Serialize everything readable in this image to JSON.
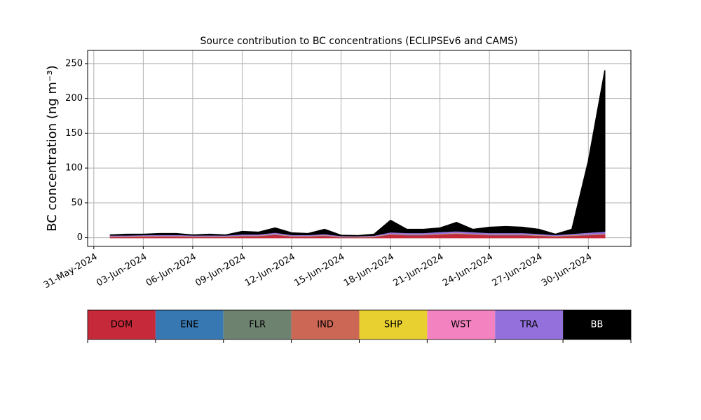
{
  "chart_data": {
    "type": "stacked_area",
    "title": "Source contribution to BC concentrations (ECLIPSEv6 and CAMS)",
    "y_label": "BC concentration (ng m⁻³)",
    "x": [
      "2024-06-01",
      "2024-06-02",
      "2024-06-03",
      "2024-06-04",
      "2024-06-05",
      "2024-06-06",
      "2024-06-07",
      "2024-06-08",
      "2024-06-09",
      "2024-06-10",
      "2024-06-11",
      "2024-06-12",
      "2024-06-13",
      "2024-06-14",
      "2024-06-15",
      "2024-06-16",
      "2024-06-17",
      "2024-06-18",
      "2024-06-19",
      "2024-06-20",
      "2024-06-21",
      "2024-06-22",
      "2024-06-23",
      "2024-06-24",
      "2024-06-25",
      "2024-06-26",
      "2024-06-27",
      "2024-06-28",
      "2024-06-29",
      "2024-06-30",
      "2024-07-01"
    ],
    "series": [
      {
        "name": "DOM",
        "color": "#c62a3a",
        "values": [
          1.5,
          1.5,
          1.8,
          2,
          2,
          1.5,
          1.5,
          1.5,
          2.5,
          2.5,
          4.5,
          2,
          2,
          3,
          1,
          0.8,
          1.2,
          5,
          4,
          4,
          5,
          6,
          5,
          4,
          4,
          4,
          3,
          2,
          3,
          4,
          5
        ]
      },
      {
        "name": "ENE",
        "color": "#3878b2",
        "values": [
          0.2,
          0.2,
          0.2,
          0.2,
          0.2,
          0.2,
          0.2,
          0.2,
          0.2,
          0.2,
          0.2,
          0.2,
          0.2,
          0.2,
          0.2,
          0.2,
          0.2,
          0.2,
          0.2,
          0.2,
          0.2,
          0.2,
          0.2,
          0.2,
          0.2,
          0.2,
          0.2,
          0.2,
          0.2,
          0.2,
          0.2
        ]
      },
      {
        "name": "FLR",
        "color": "#6e8270",
        "values": [
          0.1,
          0.1,
          0.1,
          0.1,
          0.1,
          0.1,
          0.1,
          0.1,
          0.1,
          0.1,
          0.1,
          0.1,
          0.1,
          0.1,
          0.1,
          0.1,
          0.1,
          0.1,
          0.1,
          0.1,
          0.1,
          0.1,
          0.1,
          0.1,
          0.1,
          0.1,
          0.1,
          0.1,
          0.1,
          0.1,
          0.1
        ]
      },
      {
        "name": "IND",
        "color": "#cc6655",
        "values": [
          0.4,
          0.4,
          0.4,
          0.4,
          0.4,
          0.4,
          0.4,
          0.4,
          0.4,
          0.4,
          0.4,
          0.4,
          0.4,
          0.4,
          0.4,
          0.4,
          0.4,
          0.4,
          0.4,
          0.4,
          0.4,
          0.4,
          0.4,
          0.4,
          0.4,
          0.4,
          0.4,
          0.4,
          0.4,
          0.4,
          0.4
        ]
      },
      {
        "name": "SHP",
        "color": "#e8d030",
        "values": [
          0.3,
          0.3,
          0.3,
          0.3,
          0.3,
          0.3,
          0.3,
          0.3,
          0.3,
          0.3,
          0.3,
          0.3,
          0.3,
          0.3,
          0.3,
          0.3,
          0.3,
          0.3,
          0.3,
          0.3,
          0.3,
          0.3,
          0.3,
          0.3,
          0.3,
          0.3,
          0.3,
          0.3,
          0.3,
          0.3,
          0.3
        ]
      },
      {
        "name": "WST",
        "color": "#f283c0",
        "values": [
          0.2,
          0.2,
          0.2,
          0.2,
          0.2,
          0.2,
          0.2,
          0.2,
          0.2,
          0.2,
          0.2,
          0.2,
          0.2,
          0.2,
          0.2,
          0.2,
          0.2,
          0.2,
          0.2,
          0.2,
          0.2,
          0.2,
          0.2,
          0.2,
          0.2,
          0.2,
          0.2,
          0.2,
          0.2,
          0.2,
          0.2
        ]
      },
      {
        "name": "TRA",
        "color": "#9370db",
        "values": [
          1.0,
          1.0,
          1.2,
          1.3,
          1.3,
          1.0,
          1.1,
          1.0,
          1.5,
          1.5,
          2,
          1.2,
          1.2,
          1.5,
          0.8,
          0.7,
          1,
          2,
          2,
          2,
          2.5,
          2.5,
          2.3,
          2,
          2,
          2,
          1.8,
          1.2,
          1.8,
          2.5,
          3
        ]
      },
      {
        "name": "BB",
        "color": "#000000",
        "values": [
          0.3,
          1.3,
          0.8,
          1.5,
          1.5,
          0.3,
          1.2,
          0.3,
          3.8,
          2.8,
          6.3,
          2.6,
          1.6,
          6.3,
          0.5,
          0.3,
          1.6,
          16.8,
          4.8,
          4.8,
          5.3,
          12.3,
          3.5,
          7.8,
          8.8,
          7.8,
          6,
          0.6,
          6,
          102.3,
          230.8
        ]
      }
    ],
    "xlim": [
      "2024-05-30T15:00",
      "2024-07-02T14:00"
    ],
    "xticks": [
      {
        "value": "2024-05-31",
        "label": "31-May-2024"
      },
      {
        "value": "2024-06-03",
        "label": "03-Jun-2024"
      },
      {
        "value": "2024-06-06",
        "label": "06-Jun-2024"
      },
      {
        "value": "2024-06-09",
        "label": "09-Jun-2024"
      },
      {
        "value": "2024-06-12",
        "label": "12-Jun-2024"
      },
      {
        "value": "2024-06-15",
        "label": "15-Jun-2024"
      },
      {
        "value": "2024-06-18",
        "label": "18-Jun-2024"
      },
      {
        "value": "2024-06-21",
        "label": "21-Jun-2024"
      },
      {
        "value": "2024-06-24",
        "label": "24-Jun-2024"
      },
      {
        "value": "2024-06-27",
        "label": "27-Jun-2024"
      },
      {
        "value": "2024-06-30",
        "label": "30-Jun-2024"
      }
    ],
    "ylim": [
      -12.5,
      269
    ],
    "yticks": [
      0,
      50,
      100,
      150,
      200,
      250
    ],
    "grid": true
  }
}
